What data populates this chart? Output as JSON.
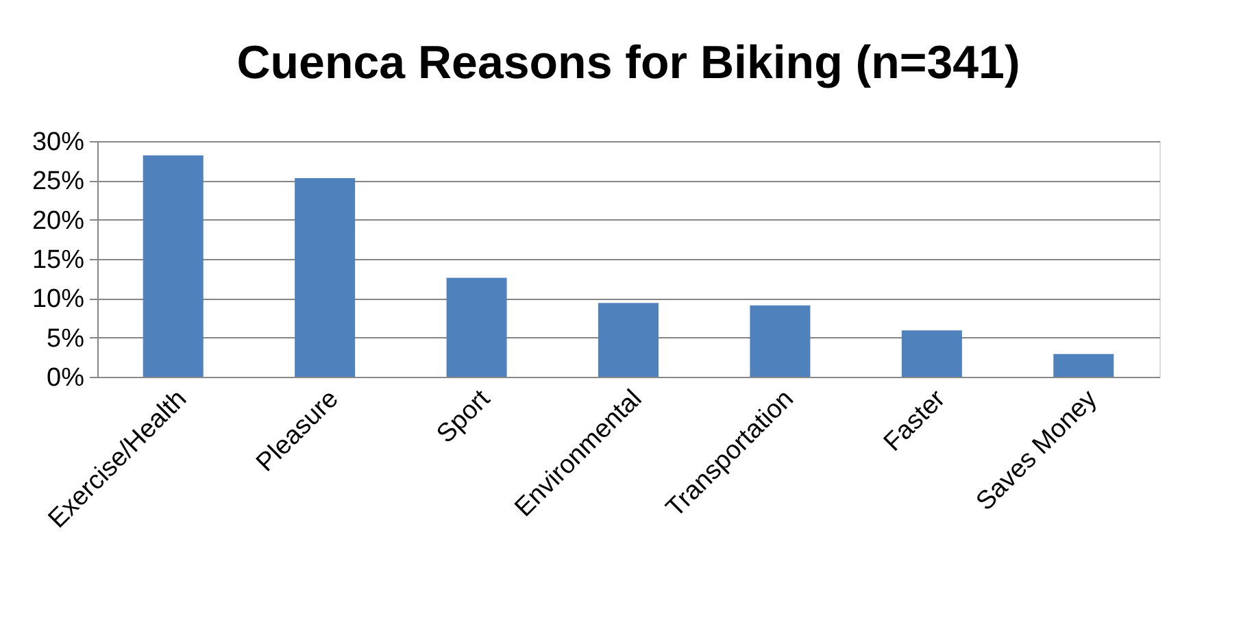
{
  "chart_data": {
    "type": "bar",
    "title": "Cuenca Reasons for Biking (n=341)",
    "categories": [
      "Exercise/Health",
      "Pleasure",
      "Sport",
      "Environmental",
      "Transportation",
      "Faster",
      "Saves Money"
    ],
    "values": [
      28.2,
      25.3,
      12.6,
      9.4,
      9.1,
      5.9,
      2.9
    ],
    "color": "#4f81bd",
    "ylim": [
      0,
      30
    ],
    "yticks": [
      {
        "value": 0,
        "label": "0%"
      },
      {
        "value": 5,
        "label": "5%"
      },
      {
        "value": 10,
        "label": "10%"
      },
      {
        "value": 15,
        "label": "15%"
      },
      {
        "value": 20,
        "label": "20%"
      },
      {
        "value": 25,
        "label": "25%"
      },
      {
        "value": 30,
        "label": "30%"
      }
    ],
    "grid": "y"
  }
}
